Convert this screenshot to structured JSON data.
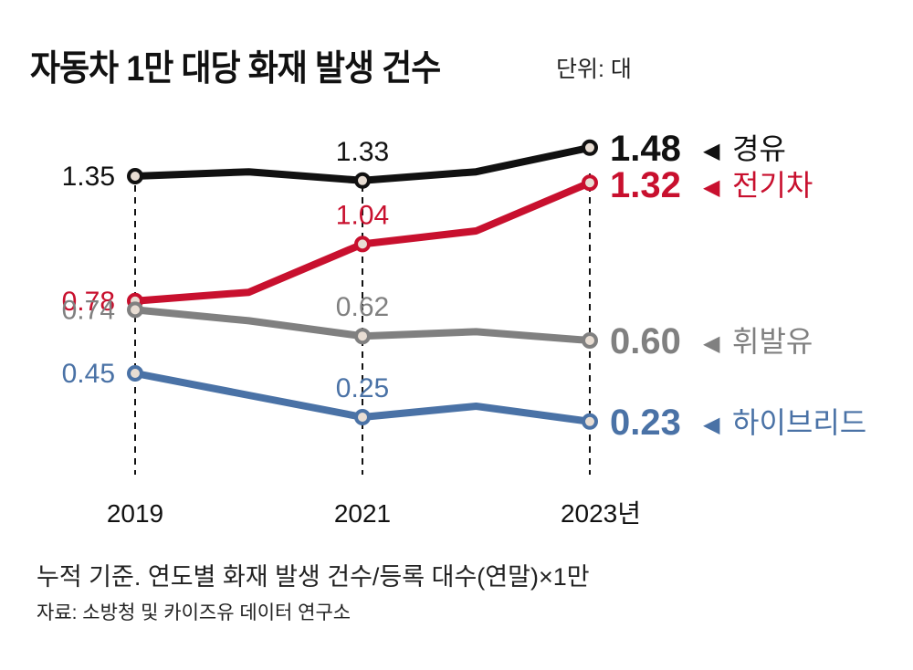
{
  "title": "자동차 1만 대당 화재 발생 건수",
  "unit": "단위: 대",
  "note": "누적 기준. 연도별 화재 발생 건수/등록 대수(연말)×1만",
  "source": "자료: 소방청 및 카이즈유 데이터 연구소",
  "marker_fill": "#e8ddd3",
  "chart_data": {
    "type": "line",
    "title": "자동차 1만 대당 화재 발생 건수",
    "xlabel": "",
    "ylabel": "단위: 대",
    "x": [
      2019,
      2020,
      2021,
      2022,
      2023
    ],
    "tick_labels": [
      "2019",
      "",
      "2021",
      "",
      "2023년"
    ],
    "ylim": [
      0,
      1.6
    ],
    "grid": false,
    "legend": "right-end labels",
    "series": [
      {
        "name": "경유",
        "color": "#111111",
        "values": [
          1.35,
          1.37,
          1.33,
          1.37,
          1.48
        ],
        "labels": [
          "1.35",
          null,
          "1.33",
          null,
          "1.48"
        ]
      },
      {
        "name": "전기차",
        "color": "#c8102e",
        "values": [
          0.78,
          0.82,
          1.04,
          1.1,
          1.32
        ],
        "labels": [
          "0.78",
          null,
          "1.04",
          null,
          "1.32"
        ]
      },
      {
        "name": "휘발유",
        "color": "#808080",
        "values": [
          0.74,
          0.69,
          0.62,
          0.64,
          0.6
        ],
        "labels": [
          "0.74",
          null,
          "0.62",
          null,
          "0.60"
        ]
      },
      {
        "name": "하이브리드",
        "color": "#4a72a6",
        "values": [
          0.45,
          0.35,
          0.25,
          0.3,
          0.23
        ],
        "labels": [
          "0.45",
          null,
          "0.25",
          null,
          "0.23"
        ]
      }
    ],
    "end_label_arrow": "◀"
  }
}
